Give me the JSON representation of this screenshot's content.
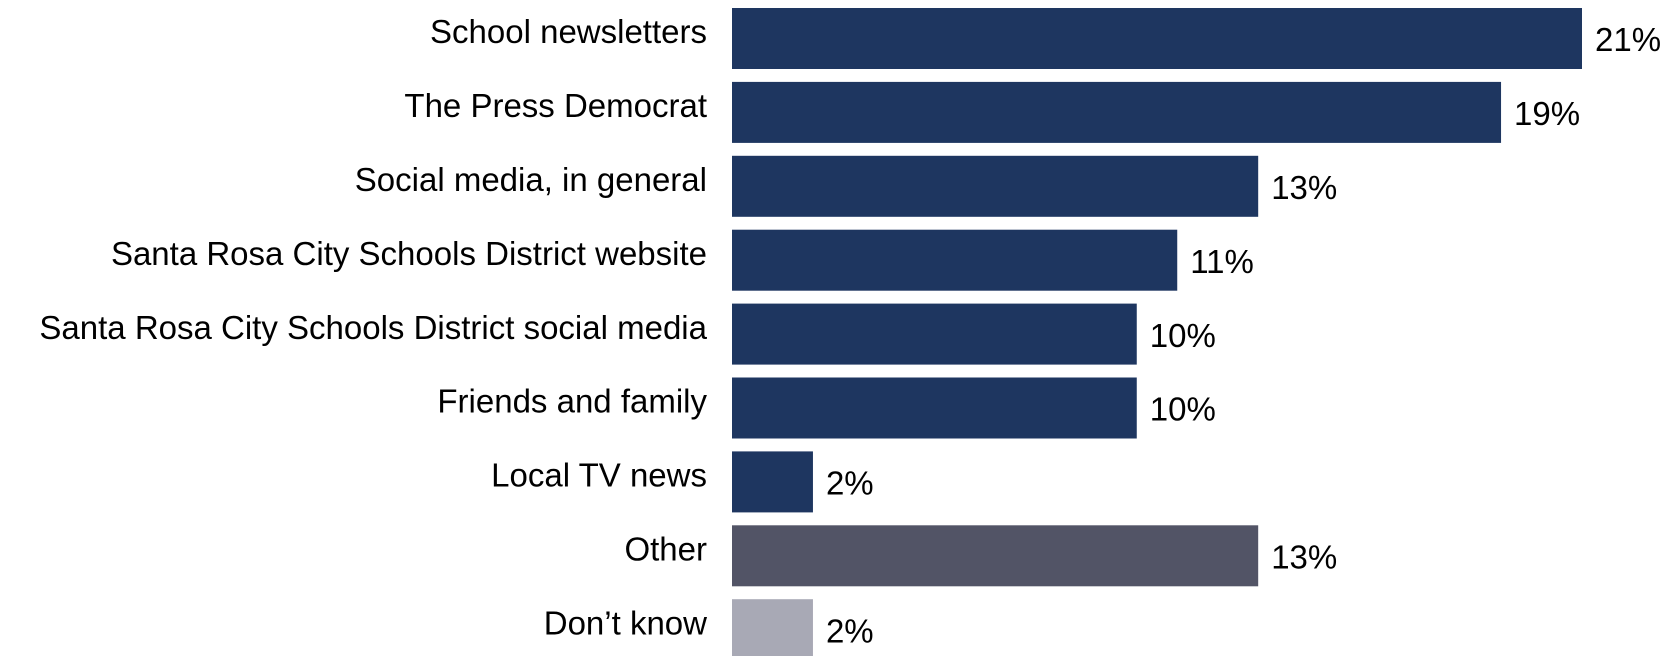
{
  "chart_data": {
    "type": "bar",
    "orientation": "horizontal",
    "categories": [
      "School newsletters",
      "The Press Democrat",
      "Social media, in general",
      "Santa Rosa City Schools District website",
      "Santa Rosa City Schools District social media",
      "Friends and family",
      "Local TV news",
      "Other",
      "Don’t know"
    ],
    "values": [
      21,
      19,
      13,
      11,
      10,
      10,
      2,
      13,
      2
    ],
    "value_labels": [
      "21%",
      "19%",
      "13%",
      "11%",
      "10%",
      "10%",
      "2%",
      "13%",
      "2%"
    ],
    "bar_colors": [
      "#1e3660",
      "#1e3660",
      "#1e3660",
      "#1e3660",
      "#1e3660",
      "#1e3660",
      "#1e3660",
      "#525466",
      "#a8a9b5"
    ],
    "title": "",
    "xlabel": "",
    "ylabel": "",
    "xlim": [
      0,
      21
    ],
    "grid": false,
    "legend": "none"
  }
}
